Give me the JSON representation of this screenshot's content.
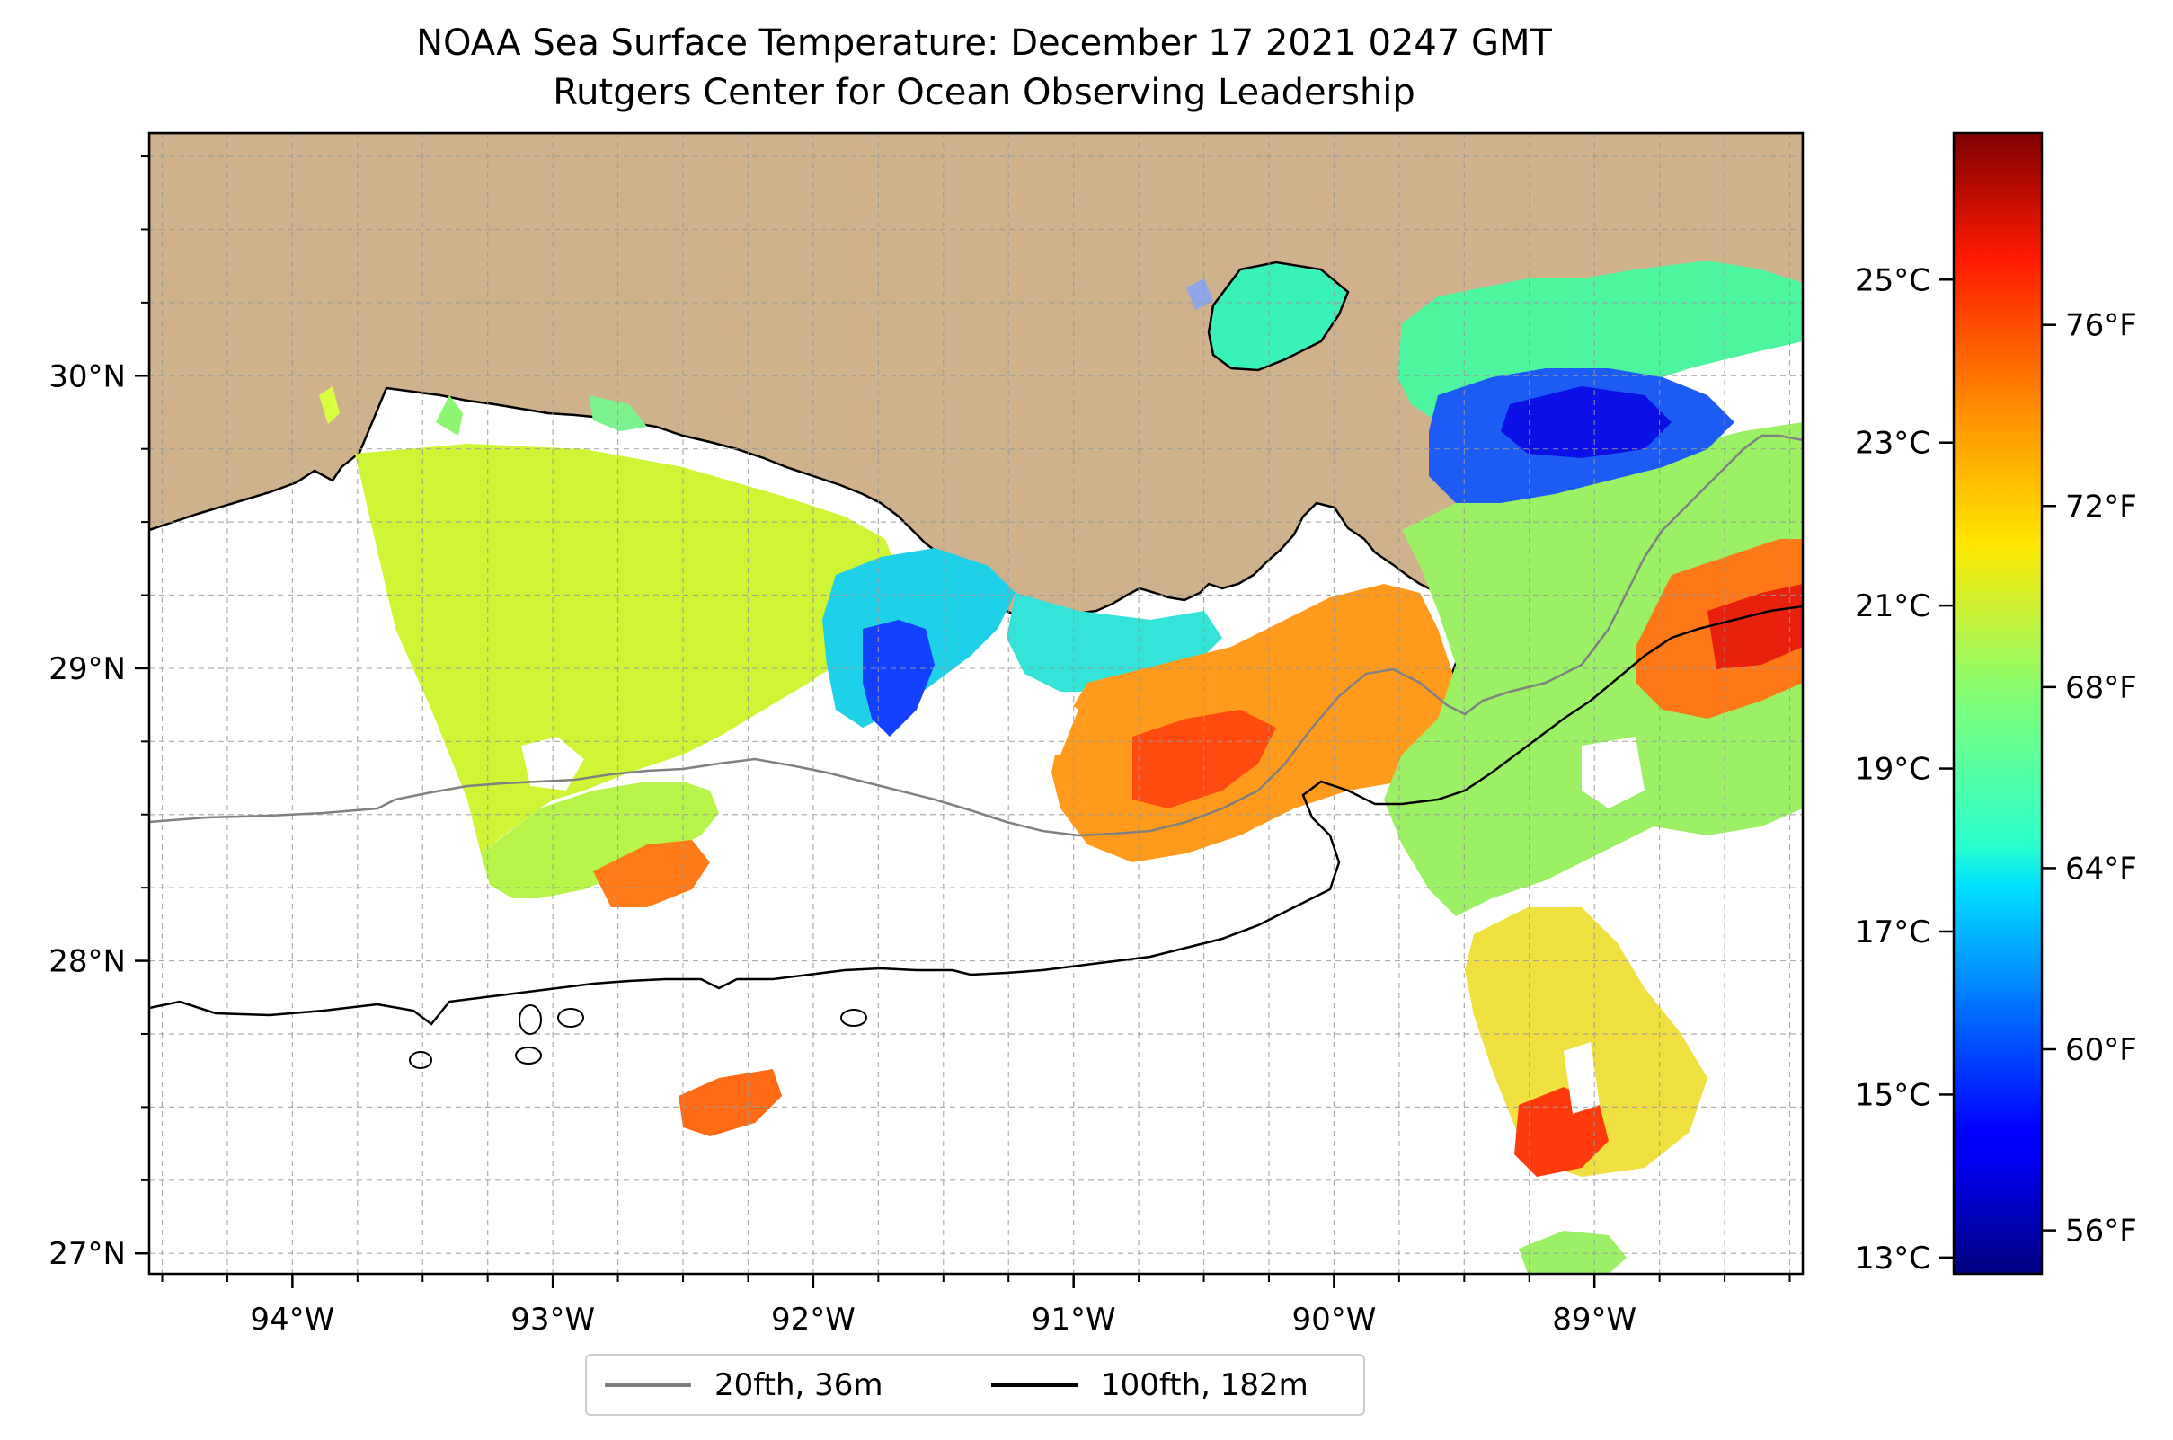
{
  "title": {
    "line1": "NOAA Sea Surface Temperature: December 17 2021 0247 GMT",
    "line2": "Rutgers Center for Ocean Observing Leadership"
  },
  "map": {
    "lon_range": [
      -94.55,
      -88.2
    ],
    "lat_range": [
      26.93,
      30.83
    ],
    "lon_ticks": [
      {
        "value": -94,
        "label": "94°W"
      },
      {
        "value": -93,
        "label": "93°W"
      },
      {
        "value": -92,
        "label": "92°W"
      },
      {
        "value": -91,
        "label": "91°W"
      },
      {
        "value": -90,
        "label": "90°W"
      },
      {
        "value": -89,
        "label": "89°W"
      }
    ],
    "lat_ticks": [
      {
        "value": 27,
        "label": "27°N"
      },
      {
        "value": 28,
        "label": "28°N"
      },
      {
        "value": 29,
        "label": "29°N"
      },
      {
        "value": 30,
        "label": "30°N"
      }
    ],
    "grid_step_deg": 0.25,
    "gridlines": true,
    "land_color": "#cfb18b",
    "ocean_color": "#ffffff"
  },
  "colorbar": {
    "colormap": "jet",
    "range_c": [
      12.8,
      26.8
    ],
    "celsius_ticks": [
      {
        "value": 13,
        "label": "13°C"
      },
      {
        "value": 15,
        "label": "15°C"
      },
      {
        "value": 17,
        "label": "17°C"
      },
      {
        "value": 19,
        "label": "19°C"
      },
      {
        "value": 21,
        "label": "21°C"
      },
      {
        "value": 23,
        "label": "23°C"
      },
      {
        "value": 25,
        "label": "25°C"
      }
    ],
    "fahrenheit_ticks": [
      {
        "value": 56,
        "label": "56°F"
      },
      {
        "value": 60,
        "label": "60°F"
      },
      {
        "value": 64,
        "label": "64°F"
      },
      {
        "value": 68,
        "label": "68°F"
      },
      {
        "value": 72,
        "label": "72°F"
      },
      {
        "value": 76,
        "label": "76°F"
      }
    ]
  },
  "legend": {
    "items": [
      {
        "label": "20fth, 36m",
        "color": "#808080"
      },
      {
        "label": "100fth, 182m",
        "color": "#000000"
      }
    ]
  }
}
